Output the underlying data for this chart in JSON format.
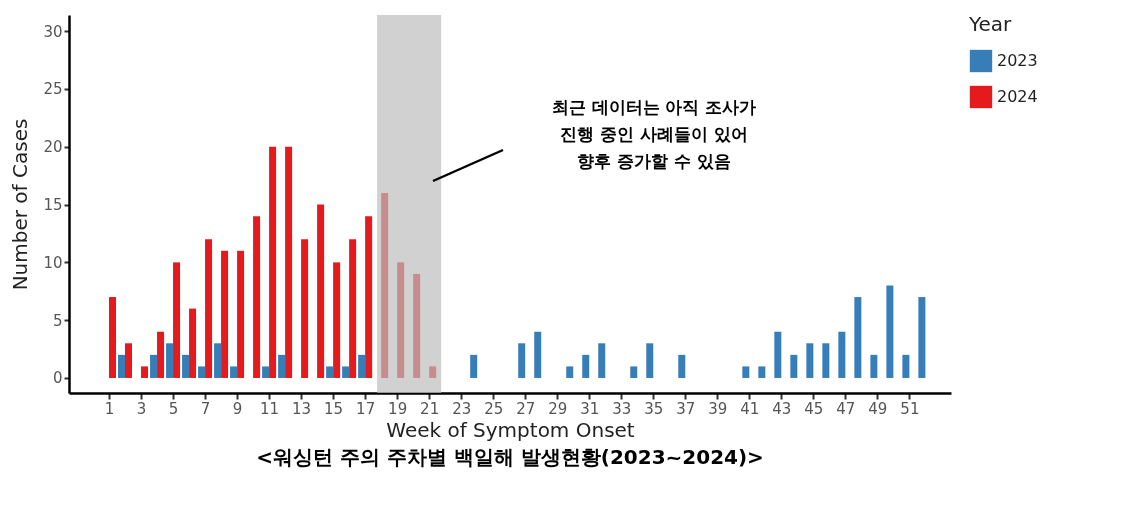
{
  "chart_data": {
    "type": "bar",
    "title": "<워싱턴 주의 주차별 백일해 발생현황(2023~2024)>",
    "xlabel": "Week of Symptom Onset",
    "ylabel": "Number of Cases",
    "legend_title": "Year",
    "x": [
      1,
      2,
      3,
      4,
      5,
      6,
      7,
      8,
      9,
      10,
      11,
      12,
      13,
      14,
      15,
      16,
      17,
      18,
      19,
      20,
      21,
      22,
      23,
      24,
      25,
      26,
      27,
      28,
      29,
      30,
      31,
      32,
      33,
      34,
      35,
      36,
      37,
      38,
      39,
      40,
      41,
      42,
      43,
      44,
      45,
      46,
      47,
      48,
      49,
      50,
      51,
      52
    ],
    "series": [
      {
        "name": "2023",
        "color": "#377eb8",
        "values": [
          0,
          2,
          0,
          2,
          3,
          2,
          1,
          3,
          1,
          0,
          1,
          2,
          0,
          0,
          1,
          1,
          2,
          0,
          0,
          0,
          0,
          0,
          0,
          2,
          0,
          0,
          3,
          4,
          0,
          1,
          2,
          3,
          0,
          1,
          3,
          0,
          2,
          0,
          0,
          0,
          1,
          1,
          4,
          2,
          3,
          3,
          4,
          7,
          2,
          8,
          2,
          7
        ]
      },
      {
        "name": "2024",
        "color": "#e41a1c",
        "values": [
          7,
          3,
          1,
          4,
          10,
          6,
          12,
          11,
          11,
          14,
          20,
          20,
          12,
          15,
          10,
          12,
          14,
          16,
          10,
          9,
          1,
          0,
          0,
          0,
          0,
          0,
          0,
          0,
          0,
          0,
          0,
          0,
          0,
          0,
          0,
          0,
          0,
          0,
          0,
          0,
          0,
          0,
          0,
          0,
          0,
          0,
          0,
          0,
          0,
          0,
          0,
          0
        ]
      }
    ],
    "xlim": [
      -1.5,
      53.6
    ],
    "xticks": [
      1,
      3,
      5,
      7,
      9,
      11,
      13,
      15,
      17,
      19,
      21,
      23,
      25,
      27,
      29,
      31,
      33,
      35,
      37,
      39,
      41,
      43,
      45,
      47,
      49,
      51
    ],
    "ylim": [
      -1.3,
      31.4
    ],
    "yticks": [
      0,
      5,
      10,
      15,
      20,
      25,
      30
    ],
    "bands": [
      {
        "axis": "x",
        "from": 17.75,
        "to": 21.75,
        "color": "#bebebe"
      }
    ],
    "annotations": [
      "최근 데이터는 아직 조사가\n진행 중인 사례들이 있어\n향후 증가할 수 있음"
    ],
    "grid": false,
    "legend": "right"
  }
}
